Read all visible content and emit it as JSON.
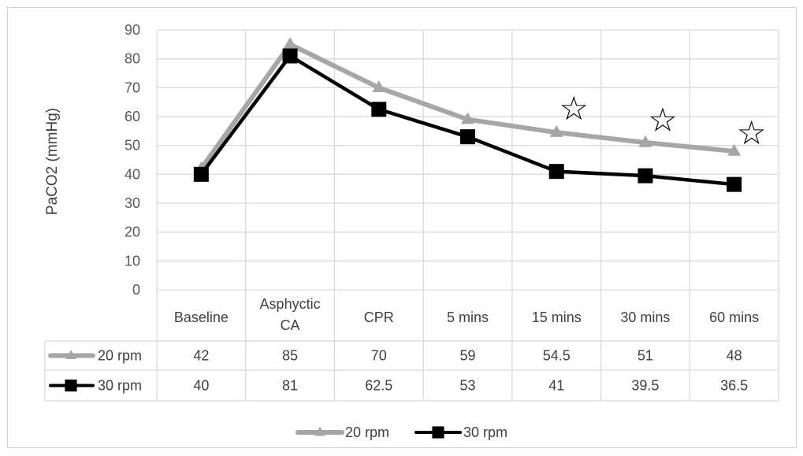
{
  "chart_data": {
    "type": "line",
    "ylabel": "PaCO2 (mmHg)",
    "ylim": [
      0,
      90
    ],
    "yticks": [
      0,
      10,
      20,
      30,
      40,
      50,
      60,
      70,
      80,
      90
    ],
    "grid": true,
    "legend_position": "bottom",
    "categories": [
      [
        "Baseline"
      ],
      [
        "Asphyctic",
        "CA"
      ],
      [
        "CPR"
      ],
      [
        "5 mins"
      ],
      [
        "15 mins"
      ],
      [
        "30 mins"
      ],
      [
        "60 mins"
      ]
    ],
    "series": [
      {
        "name": "20 rpm",
        "values": [
          42,
          85,
          70,
          59,
          54.5,
          51,
          48
        ],
        "labels": [
          "42",
          "85",
          "70",
          "59",
          "54.5",
          "51",
          "48"
        ],
        "color": "#a6a6a6",
        "marker": "triangle"
      },
      {
        "name": "30 rpm",
        "values": [
          40,
          81,
          62.5,
          53,
          41,
          39.5,
          36.5
        ],
        "labels": [
          "40",
          "81",
          "62.5",
          "53",
          "41",
          "39.5",
          "36.5"
        ],
        "color": "#000000",
        "marker": "square"
      }
    ],
    "annotations": [
      {
        "symbol": "☆",
        "category_index": 4,
        "y": 63
      },
      {
        "symbol": "☆",
        "category_index": 5,
        "y": 59
      },
      {
        "symbol": "☆",
        "category_index": 6,
        "y": 54.5
      }
    ]
  }
}
